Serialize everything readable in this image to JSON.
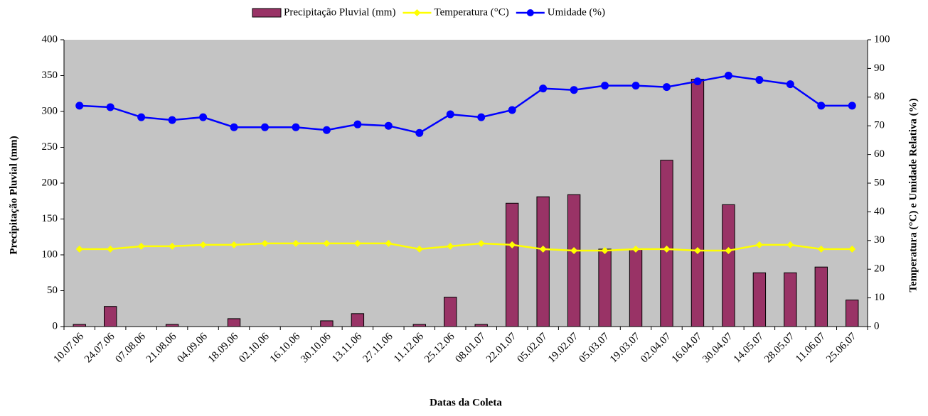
{
  "chart_data": {
    "type": "bar-line",
    "legend_position": "top",
    "xlabel": "Datas da Coleta",
    "ylabel": "Precipitação Pluvial (mm)",
    "y2label": "Temperatura (°C) e Umidade Relativa (%)",
    "categories": [
      "10.07.06",
      "24.07.06",
      "07.08.06",
      "21.08.06",
      "04.09.06",
      "18.09.06",
      "02.10.06",
      "16.10.06",
      "30.10.06",
      "13.11.06",
      "27.11.06",
      "11.12.06",
      "25.12.06",
      "08.01.07",
      "22.01.07",
      "05.02.07",
      "19.02.07",
      "05.03.07",
      "19.03.07",
      "02.04.07",
      "16.04.07",
      "30.04.07",
      "14.05.07",
      "28.05.07",
      "11.06.07",
      "25.06.07"
    ],
    "series": [
      {
        "name": "Precipitação Pluvial (mm)",
        "type": "bar",
        "color": "#993366",
        "values": [
          3,
          28,
          0,
          3,
          0,
          11,
          0,
          0,
          8,
          18,
          0,
          3,
          41,
          3,
          172,
          181,
          184,
          108,
          108,
          232,
          345,
          170,
          75,
          75,
          83,
          37
        ]
      },
      {
        "name": "Temperatura (°C)",
        "type": "line",
        "axis": "y2",
        "color": "#ffff00",
        "values": [
          27,
          27,
          28,
          28,
          28.5,
          28.5,
          29,
          29,
          29,
          29,
          29,
          27,
          28,
          29,
          28.5,
          27,
          26.5,
          26.5,
          27,
          27,
          26.5,
          26.5,
          28.5,
          28.5,
          27,
          27
        ]
      },
      {
        "name": "Umidade (%)",
        "type": "line",
        "axis": "y2",
        "color": "#0000ff",
        "values": [
          77,
          76.5,
          73,
          72,
          73,
          69.5,
          69.5,
          69.5,
          68.5,
          70.5,
          70,
          67.5,
          74,
          73,
          75.5,
          83,
          82.5,
          84,
          84,
          83.5,
          85.5,
          87.5,
          86,
          84.5,
          77,
          77
        ]
      }
    ],
    "ylim": [
      0,
      400
    ],
    "yticks": [
      0,
      50,
      100,
      150,
      200,
      250,
      300,
      350,
      400
    ],
    "y2lim": [
      0,
      100
    ],
    "y2ticks": [
      0,
      10,
      20,
      30,
      40,
      50,
      60,
      70,
      80,
      90,
      100
    ]
  }
}
